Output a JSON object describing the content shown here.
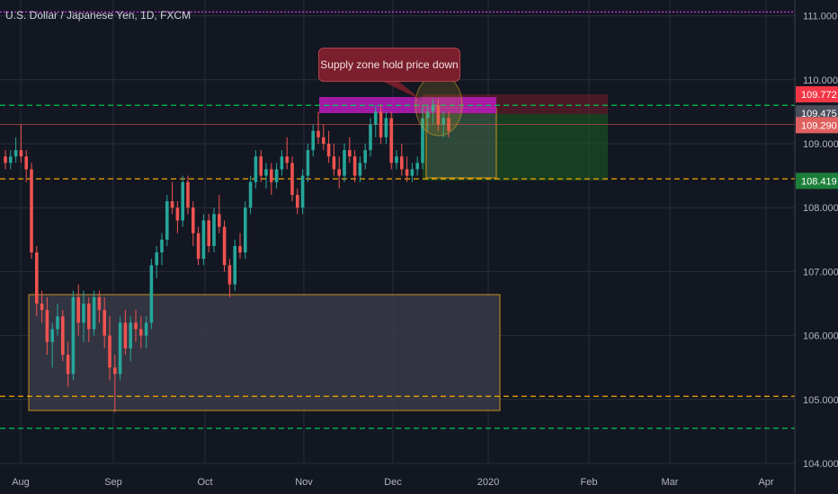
{
  "header": {
    "title": "U.S. Dollar / Japanese Yen, 1D, FXCM"
  },
  "annotation": {
    "callout_text": "Supply zone hold price down"
  },
  "colors": {
    "background": "#131722",
    "grid": "#2a2e39",
    "up": "#26a69a",
    "down": "#ef5350",
    "green_dash": "#00c853",
    "orange_dash": "#f7a600",
    "magenta_dash": "#e040fb",
    "supply_zone": "#b31bb3",
    "demand_zone_fill": "#3a3a46",
    "demand_zone_border": "#c8911f"
  },
  "chart_data": {
    "type": "candlestick",
    "title": "U.S. Dollar / Japanese Yen, 1D, FXCM",
    "ylim": [
      104.0,
      111.2
    ],
    "y_ticks": [
      "111.000",
      "110.000",
      "109.000",
      "108.000",
      "107.000",
      "106.000",
      "105.000",
      "104.000"
    ],
    "x_ticks": [
      "Aug",
      "Sep",
      "Oct",
      "Nov",
      "Dec",
      "2020",
      "Feb",
      "Mar",
      "Apr"
    ],
    "price_labels": [
      {
        "value": "109.772",
        "bg": "#f23645",
        "fg": "#ffffff"
      },
      {
        "value": "109.475",
        "bg": "#4a4e5a",
        "fg": "#ffffff"
      },
      {
        "value": "109.290",
        "bg": "#e06060",
        "fg": "#ffffff"
      },
      {
        "value": "108.419",
        "bg": "#1b7f3a",
        "fg": "#ffffff"
      }
    ],
    "horizontal_lines": [
      {
        "price": 111.06,
        "style": "magenta-dash"
      },
      {
        "price": 109.6,
        "style": "green-dash"
      },
      {
        "price": 108.45,
        "style": "orange-dash"
      },
      {
        "price": 105.05,
        "style": "orange-dash"
      },
      {
        "price": 104.55,
        "style": "green-dash"
      },
      {
        "price": 109.3,
        "style": "red-thin"
      }
    ],
    "candles": [
      [
        108.8,
        108.9,
        108.6,
        108.7
      ],
      [
        108.7,
        108.9,
        108.6,
        108.8
      ],
      [
        108.8,
        109.1,
        108.7,
        108.9
      ],
      [
        108.9,
        109.3,
        108.7,
        108.8
      ],
      [
        108.8,
        108.9,
        108.4,
        108.6
      ],
      [
        108.6,
        108.7,
        107.2,
        107.3
      ],
      [
        107.3,
        107.4,
        106.3,
        106.5
      ],
      [
        106.5,
        106.7,
        106.2,
        106.4
      ],
      [
        106.4,
        106.6,
        105.7,
        105.9
      ],
      [
        105.9,
        106.2,
        105.5,
        106.1
      ],
      [
        106.1,
        106.5,
        106.0,
        106.3
      ],
      [
        106.3,
        106.4,
        105.6,
        105.7
      ],
      [
        105.7,
        105.9,
        105.2,
        105.4
      ],
      [
        105.4,
        106.7,
        105.3,
        106.6
      ],
      [
        106.6,
        106.8,
        106.0,
        106.2
      ],
      [
        106.2,
        106.7,
        105.9,
        106.5
      ],
      [
        106.5,
        106.6,
        105.9,
        106.1
      ],
      [
        106.1,
        106.7,
        106.0,
        106.6
      ],
      [
        106.6,
        106.7,
        106.2,
        106.4
      ],
      [
        106.4,
        106.6,
        105.8,
        106.0
      ],
      [
        106.0,
        106.3,
        105.3,
        105.5
      ],
      [
        105.5,
        105.7,
        104.8,
        105.4
      ],
      [
        105.4,
        106.3,
        105.3,
        106.2
      ],
      [
        106.2,
        106.4,
        105.7,
        105.8
      ],
      [
        105.8,
        106.3,
        105.6,
        106.2
      ],
      [
        106.2,
        106.4,
        105.9,
        106.1
      ],
      [
        106.1,
        106.3,
        105.8,
        106.0
      ],
      [
        106.0,
        106.3,
        105.8,
        106.2
      ],
      [
        106.2,
        107.2,
        106.1,
        107.1
      ],
      [
        107.1,
        107.4,
        106.9,
        107.3
      ],
      [
        107.3,
        107.6,
        107.1,
        107.5
      ],
      [
        107.5,
        108.2,
        107.4,
        108.1
      ],
      [
        108.1,
        108.4,
        107.9,
        108.0
      ],
      [
        108.0,
        108.1,
        107.6,
        107.8
      ],
      [
        107.8,
        108.5,
        107.7,
        108.4
      ],
      [
        108.4,
        108.5,
        107.9,
        108.0
      ],
      [
        108.0,
        108.1,
        107.4,
        107.6
      ],
      [
        107.6,
        107.7,
        107.1,
        107.2
      ],
      [
        107.2,
        107.9,
        107.1,
        107.8
      ],
      [
        107.8,
        107.9,
        107.3,
        107.4
      ],
      [
        107.4,
        108.0,
        107.3,
        107.9
      ],
      [
        107.9,
        108.2,
        107.6,
        107.7
      ],
      [
        107.7,
        107.8,
        107.0,
        107.1
      ],
      [
        107.1,
        107.2,
        106.6,
        106.8
      ],
      [
        106.8,
        107.5,
        106.7,
        107.4
      ],
      [
        107.4,
        107.6,
        107.2,
        107.3
      ],
      [
        107.3,
        108.1,
        107.2,
        108.0
      ],
      [
        108.0,
        108.5,
        107.9,
        108.4
      ],
      [
        108.4,
        108.9,
        108.3,
        108.8
      ],
      [
        108.8,
        108.9,
        108.4,
        108.5
      ],
      [
        108.5,
        108.7,
        108.3,
        108.6
      ],
      [
        108.6,
        108.7,
        108.2,
        108.4
      ],
      [
        108.4,
        108.7,
        108.3,
        108.6
      ],
      [
        108.6,
        108.9,
        108.5,
        108.8
      ],
      [
        108.8,
        109.1,
        108.6,
        108.7
      ],
      [
        108.7,
        108.8,
        108.1,
        108.2
      ],
      [
        108.2,
        108.3,
        107.9,
        108.0
      ],
      [
        108.0,
        108.6,
        107.9,
        108.5
      ],
      [
        108.5,
        109.0,
        108.4,
        108.9
      ],
      [
        108.9,
        109.3,
        108.8,
        109.2
      ],
      [
        109.2,
        109.5,
        109.0,
        109.1
      ],
      [
        109.1,
        109.3,
        108.9,
        109.0
      ],
      [
        109.0,
        109.2,
        108.7,
        108.8
      ],
      [
        108.8,
        109.0,
        108.5,
        108.6
      ],
      [
        108.6,
        108.8,
        108.3,
        108.5
      ],
      [
        108.5,
        109.0,
        108.4,
        108.9
      ],
      [
        108.9,
        109.1,
        108.7,
        108.8
      ],
      [
        108.8,
        108.9,
        108.4,
        108.5
      ],
      [
        108.5,
        108.8,
        108.4,
        108.7
      ],
      [
        108.7,
        109.0,
        108.6,
        108.9
      ],
      [
        108.9,
        109.4,
        108.8,
        109.3
      ],
      [
        109.3,
        109.6,
        109.1,
        109.5
      ],
      [
        109.5,
        109.6,
        109.0,
        109.1
      ],
      [
        109.1,
        109.5,
        109.0,
        109.4
      ],
      [
        109.4,
        109.5,
        108.6,
        108.7
      ],
      [
        108.7,
        108.9,
        108.6,
        108.8
      ],
      [
        108.8,
        109.0,
        108.5,
        108.6
      ],
      [
        108.6,
        108.8,
        108.4,
        108.5
      ],
      [
        108.5,
        108.7,
        108.4,
        108.6
      ],
      [
        108.6,
        108.8,
        108.5,
        108.7
      ],
      [
        108.7,
        109.6,
        108.6,
        109.4
      ],
      [
        109.4,
        109.6,
        109.2,
        109.5
      ],
      [
        109.5,
        109.7,
        109.3,
        109.6
      ],
      [
        109.6,
        109.7,
        109.2,
        109.3
      ],
      [
        109.3,
        109.5,
        109.1,
        109.4
      ],
      [
        109.4,
        109.5,
        109.1,
        109.2
      ]
    ]
  }
}
